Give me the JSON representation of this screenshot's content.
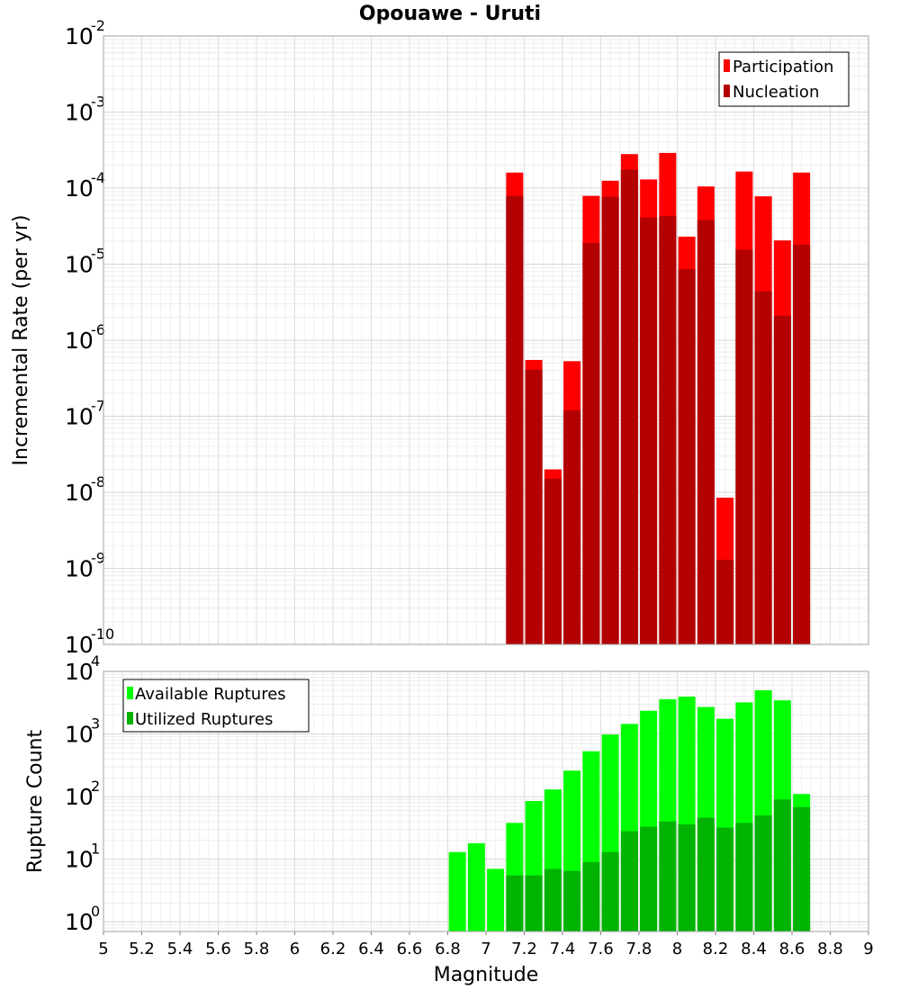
{
  "chart_data": [
    {
      "type": "bar",
      "title": "Opouawe - Uruti",
      "ylabel": "Incremental Rate (per yr)",
      "xlabel": "",
      "yscale": "log",
      "ylim": [
        1e-10,
        0.01
      ],
      "xlim": [
        5,
        9
      ],
      "ytick_labels": [
        {
          "base": "10",
          "exp": "-10"
        },
        {
          "base": "10",
          "exp": "-9"
        },
        {
          "base": "10",
          "exp": "-8"
        },
        {
          "base": "10",
          "exp": "-7"
        },
        {
          "base": "10",
          "exp": "-6"
        },
        {
          "base": "10",
          "exp": "-5"
        },
        {
          "base": "10",
          "exp": "-4"
        },
        {
          "base": "10",
          "exp": "-3"
        },
        {
          "base": "10",
          "exp": "-2"
        }
      ],
      "legend_position": "top-right",
      "grid": true,
      "x": [
        7.15,
        7.25,
        7.35,
        7.45,
        7.55,
        7.65,
        7.75,
        7.85,
        7.95,
        8.05,
        8.15,
        8.25,
        8.35,
        8.45,
        8.55,
        8.65
      ],
      "series": [
        {
          "name": "Participation",
          "color": "#ff0000",
          "values": [
            0.00016,
            5.5e-07,
            2e-08,
            5.3e-07,
            7.9e-05,
            0.000125,
            0.00028,
            0.00013,
            0.00029,
            2.3e-05,
            0.000105,
            8.5e-09,
            0.000165,
            7.8e-05,
            2.05e-05,
            0.00016
          ]
        },
        {
          "name": "Nucleation",
          "color": "#b30000",
          "values": [
            7.9e-05,
            4.1e-07,
            1.5e-08,
            1.2e-07,
            1.9e-05,
            7.7e-05,
            0.000175,
            4.1e-05,
            4.3e-05,
            8.6e-06,
            3.8e-05,
            1.3e-09,
            1.55e-05,
            4.4e-06,
            2.1e-06,
            1.8e-05
          ]
        }
      ]
    },
    {
      "type": "bar",
      "title": "",
      "ylabel": "Rupture Count",
      "xlabel": "Magnitude",
      "yscale": "log",
      "ylim": [
        0.7,
        10000
      ],
      "xlim": [
        5,
        9
      ],
      "ytick_labels": [
        {
          "base": "10",
          "exp": "0"
        },
        {
          "base": "10",
          "exp": "1"
        },
        {
          "base": "10",
          "exp": "2"
        },
        {
          "base": "10",
          "exp": "3"
        },
        {
          "base": "10",
          "exp": "4"
        }
      ],
      "xtick_labels": [
        "5",
        "5.2",
        "5.4",
        "5.6",
        "5.8",
        "6",
        "6.2",
        "6.4",
        "6.6",
        "6.8",
        "7",
        "7.2",
        "7.4",
        "7.6",
        "7.8",
        "8",
        "8.2",
        "8.4",
        "8.6",
        "8.8",
        "9"
      ],
      "legend_position": "top-left",
      "grid": true,
      "x": [
        6.85,
        6.95,
        7.05,
        7.15,
        7.25,
        7.35,
        7.45,
        7.55,
        7.65,
        7.75,
        7.85,
        7.95,
        8.05,
        8.15,
        8.25,
        8.35,
        8.45,
        8.55,
        8.65
      ],
      "series": [
        {
          "name": "Available Ruptures",
          "color": "#00ff00",
          "values": [
            13,
            18,
            7,
            38,
            85,
            130,
            260,
            530,
            980,
            1450,
            2350,
            3600,
            3950,
            2700,
            1750,
            3200,
            5000,
            3450,
            110
          ]
        },
        {
          "name": "Utilized Ruptures",
          "color": "#00b300",
          "values": [
            0,
            0,
            0,
            5.5,
            5.5,
            7,
            6.5,
            9,
            13,
            28,
            33,
            40,
            36,
            46,
            32,
            38,
            50,
            90,
            68
          ]
        }
      ]
    }
  ]
}
